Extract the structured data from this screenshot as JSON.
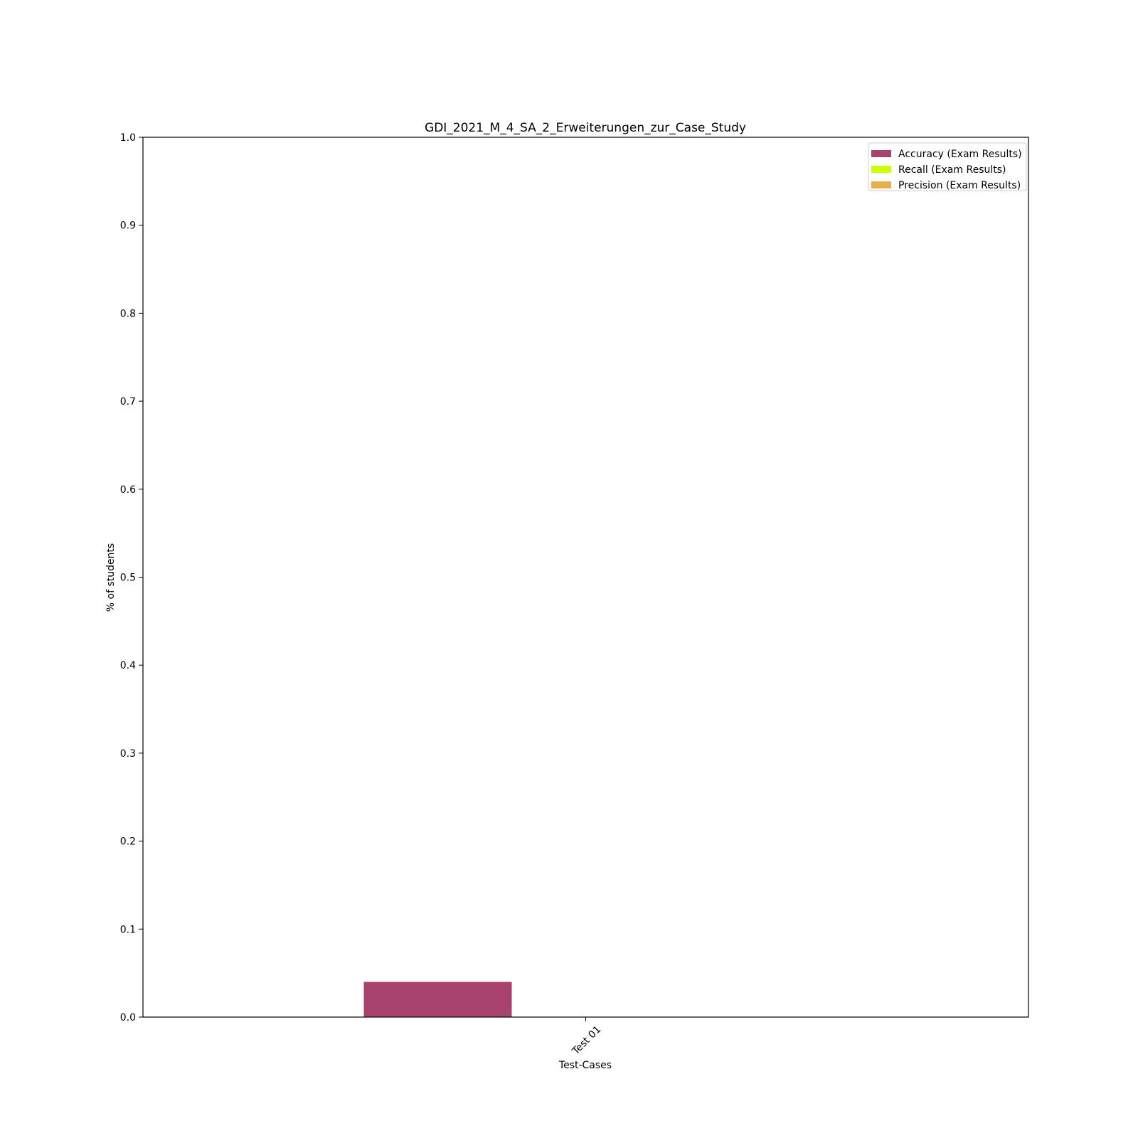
{
  "chart_data": {
    "type": "bar",
    "title": "GDI_2021_M_4_SA_2_Erweiterungen_zur_Case_Study",
    "xlabel": "Test-Cases",
    "ylabel": "% of students",
    "categories": [
      "Test 01"
    ],
    "ylim": [
      0,
      1.0
    ],
    "yticks": [
      "0.0",
      "0.1",
      "0.2",
      "0.3",
      "0.4",
      "0.5",
      "0.6",
      "0.7",
      "0.8",
      "0.9",
      "1.0"
    ],
    "grid": false,
    "legend_position": "top-right",
    "series": [
      {
        "name": "Accuracy (Exam Results)",
        "color": "#a8426f",
        "values": [
          0.04
        ]
      },
      {
        "name": "Recall (Exam Results)",
        "color": "#ccff00",
        "values": [
          0.0
        ]
      },
      {
        "name": "Precision (Exam Results)",
        "color": "#e8b04c",
        "values": [
          0.0
        ]
      }
    ]
  }
}
